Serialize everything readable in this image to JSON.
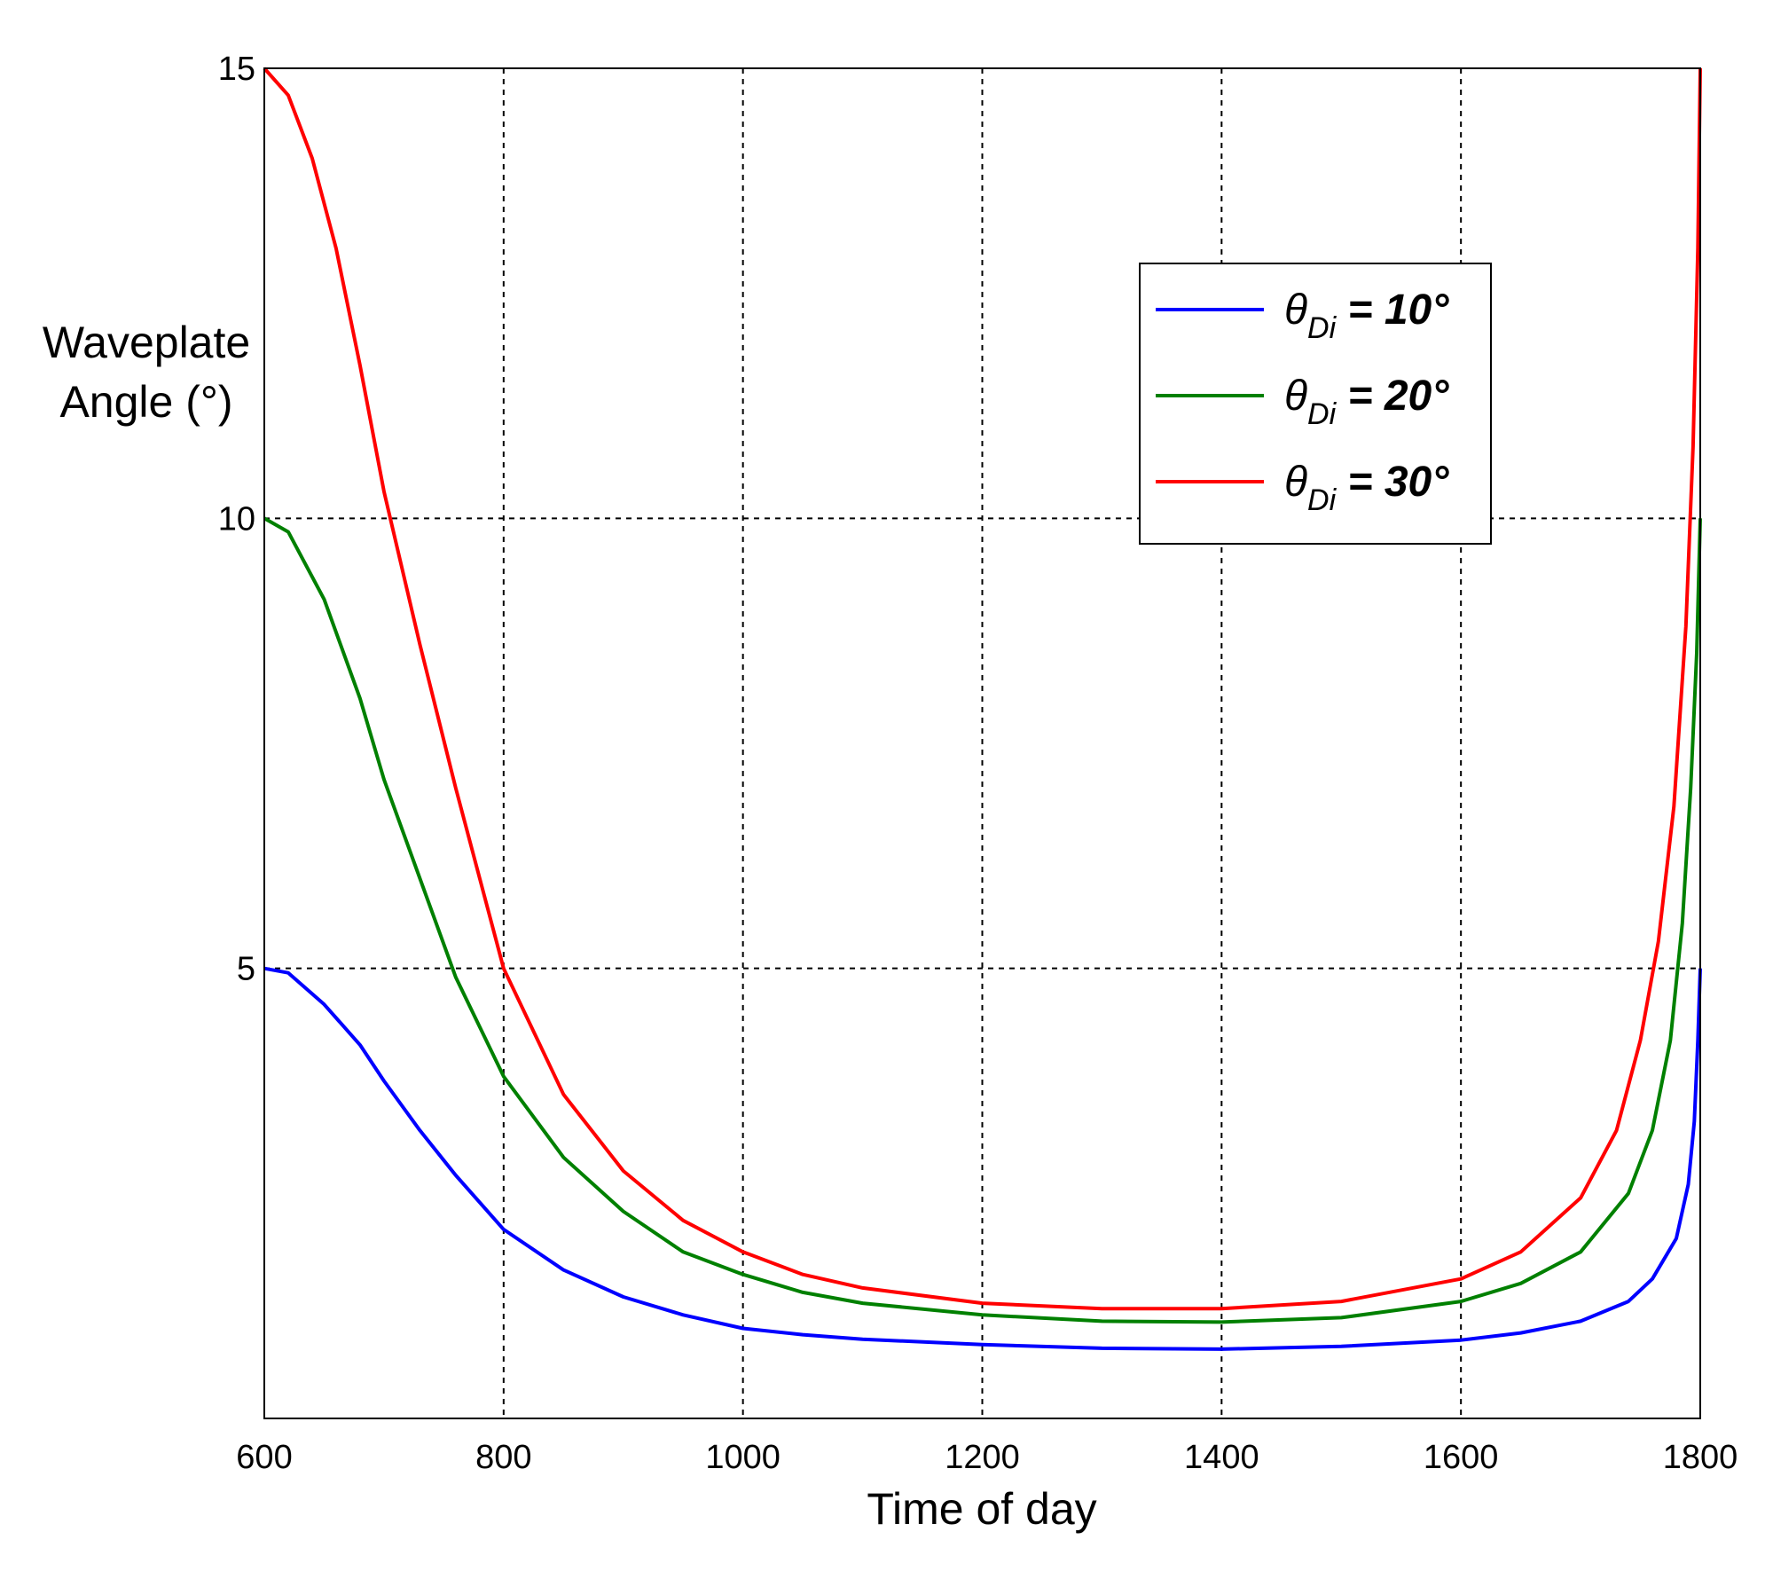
{
  "chart_data": {
    "type": "line",
    "title": "",
    "xlabel": "Time of day",
    "ylabel_lines": [
      "Waveplate",
      "Angle (°)"
    ],
    "xlim": [
      600,
      1800
    ],
    "ylim": [
      0,
      15
    ],
    "xticks": [
      600,
      800,
      1000,
      1200,
      1400,
      1600,
      1800
    ],
    "xtick_labels": [
      "600",
      "800",
      "1000",
      "1200",
      "1400",
      "1600",
      "1800"
    ],
    "yticks": [
      5,
      10,
      15
    ],
    "ytick_labels": [
      "5",
      "10",
      "15"
    ],
    "grid": true,
    "legend_position": "top-right",
    "series": [
      {
        "name": "θDi = 10°",
        "legend": {
          "symbol": "θ",
          "subscript": "Di",
          "suffix": " = 10°"
        },
        "color": "#0000ff",
        "points": [
          [
            600,
            5
          ],
          [
            620,
            4.95
          ],
          [
            650,
            4.6
          ],
          [
            680,
            4.15
          ],
          [
            700,
            3.75
          ],
          [
            730,
            3.2
          ],
          [
            760,
            2.7
          ],
          [
            800,
            2.1
          ],
          [
            850,
            1.65
          ],
          [
            900,
            1.35
          ],
          [
            950,
            1.15
          ],
          [
            1000,
            1.0
          ],
          [
            1050,
            0.93
          ],
          [
            1100,
            0.88
          ],
          [
            1200,
            0.82
          ],
          [
            1300,
            0.78
          ],
          [
            1400,
            0.77
          ],
          [
            1500,
            0.8
          ],
          [
            1600,
            0.87
          ],
          [
            1650,
            0.95
          ],
          [
            1700,
            1.08
          ],
          [
            1740,
            1.3
          ],
          [
            1760,
            1.55
          ],
          [
            1780,
            2.0
          ],
          [
            1790,
            2.6
          ],
          [
            1795,
            3.3
          ],
          [
            1798,
            4.2
          ],
          [
            1800,
            5.0
          ]
        ]
      },
      {
        "name": "θDi = 20°",
        "legend": {
          "symbol": "θ",
          "subscript": "Di",
          "suffix": " = 20°"
        },
        "color": "#008000",
        "points": [
          [
            600,
            10
          ],
          [
            620,
            9.85
          ],
          [
            650,
            9.1
          ],
          [
            680,
            8.0
          ],
          [
            700,
            7.1
          ],
          [
            730,
            6.0
          ],
          [
            760,
            4.9
          ],
          [
            800,
            3.8
          ],
          [
            850,
            2.9
          ],
          [
            900,
            2.3
          ],
          [
            950,
            1.85
          ],
          [
            1000,
            1.6
          ],
          [
            1050,
            1.4
          ],
          [
            1100,
            1.28
          ],
          [
            1200,
            1.15
          ],
          [
            1300,
            1.08
          ],
          [
            1400,
            1.07
          ],
          [
            1500,
            1.12
          ],
          [
            1600,
            1.3
          ],
          [
            1650,
            1.5
          ],
          [
            1700,
            1.85
          ],
          [
            1740,
            2.5
          ],
          [
            1760,
            3.2
          ],
          [
            1775,
            4.2
          ],
          [
            1785,
            5.5
          ],
          [
            1792,
            7.0
          ],
          [
            1797,
            8.5
          ],
          [
            1800,
            10.0
          ]
        ]
      },
      {
        "name": "θDi = 30°",
        "legend": {
          "symbol": "θ",
          "subscript": "Di",
          "suffix": " = 30°"
        },
        "color": "#ff0000",
        "points": [
          [
            600,
            15
          ],
          [
            620,
            14.7
          ],
          [
            640,
            14.0
          ],
          [
            660,
            13.0
          ],
          [
            680,
            11.7
          ],
          [
            700,
            10.3
          ],
          [
            730,
            8.6
          ],
          [
            760,
            7.0
          ],
          [
            800,
            5.0
          ],
          [
            850,
            3.6
          ],
          [
            900,
            2.75
          ],
          [
            950,
            2.2
          ],
          [
            1000,
            1.85
          ],
          [
            1050,
            1.6
          ],
          [
            1100,
            1.45
          ],
          [
            1200,
            1.28
          ],
          [
            1300,
            1.22
          ],
          [
            1400,
            1.22
          ],
          [
            1500,
            1.3
          ],
          [
            1600,
            1.55
          ],
          [
            1650,
            1.85
          ],
          [
            1700,
            2.45
          ],
          [
            1730,
            3.2
          ],
          [
            1750,
            4.2
          ],
          [
            1765,
            5.3
          ],
          [
            1778,
            6.8
          ],
          [
            1788,
            8.8
          ],
          [
            1794,
            10.8
          ],
          [
            1798,
            13.0
          ],
          [
            1800,
            15.0
          ]
        ]
      }
    ]
  }
}
